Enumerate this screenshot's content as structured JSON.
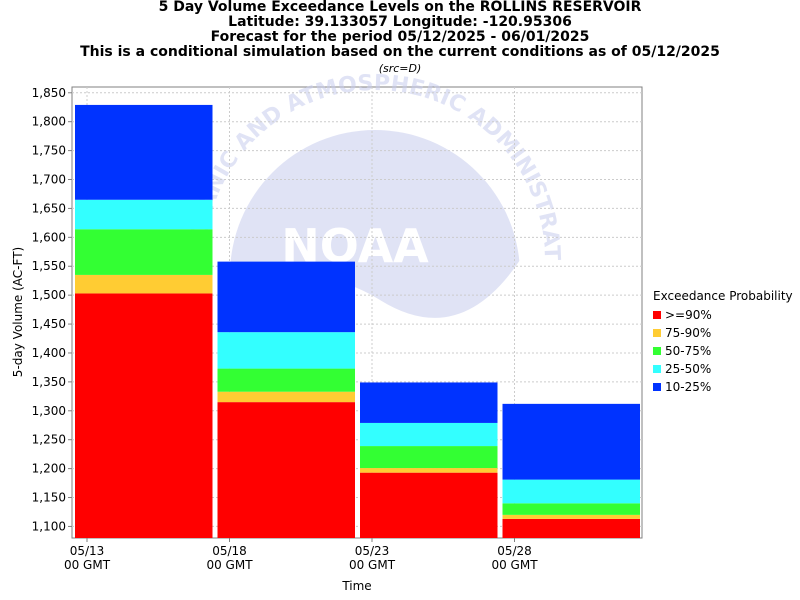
{
  "titles": {
    "line1": "5 Day Volume Exceedance Levels on the ROLLINS RESERVOIR",
    "line2": "Latitude: 39.133057 Longitude: -120.95306",
    "line3": "Forecast for the period 05/12/2025 - 06/01/2025",
    "line4": "This is a conditional simulation based on the current conditions as of 05/12/2025",
    "src": "(src=D)"
  },
  "watermark": {
    "ring_text": "OCEANIC AND ATMOSPHERIC ADMINISTRATION",
    "logo_text": "NOAA"
  },
  "chart_data": {
    "type": "bar",
    "stacked": true,
    "xlabel": "Time",
    "ylabel": "5-day Volume (AC-FT)",
    "ylim": [
      1080,
      1860
    ],
    "yticks": [
      1100,
      1150,
      1200,
      1250,
      1300,
      1350,
      1400,
      1450,
      1500,
      1550,
      1600,
      1650,
      1700,
      1750,
      1800,
      1850
    ],
    "ytick_labels": [
      "1,100",
      "1,150",
      "1,200",
      "1,250",
      "1,300",
      "1,350",
      "1,400",
      "1,450",
      "1,500",
      "1,550",
      "1,600",
      "1,650",
      "1,700",
      "1,750",
      "1,800",
      "1,850"
    ],
    "xticks": [
      {
        "line1": "05/13",
        "line2": "00 GMT"
      },
      {
        "line1": "05/18",
        "line2": "00 GMT"
      },
      {
        "line1": "05/23",
        "line2": "00 GMT"
      },
      {
        "line1": "05/28",
        "line2": "00 GMT"
      }
    ],
    "grid": true,
    "legend": {
      "title": "Exceedance Probability",
      "placement": "right",
      "items": [
        {
          "label": ">=90%",
          "color": "#ff0000"
        },
        {
          "label": "75-90%",
          "color": "#ffcc33"
        },
        {
          "label": "50-75%",
          "color": "#33ff33"
        },
        {
          "label": "25-50%",
          "color": "#33ffff"
        },
        {
          "label": "10-25%",
          "color": "#0033ff"
        }
      ]
    },
    "bars": [
      {
        "period": "05/13",
        "levels": [
          1503,
          1535,
          1614,
          1665,
          1829
        ]
      },
      {
        "period": "05/18",
        "levels": [
          1315,
          1333,
          1373,
          1436,
          1558
        ]
      },
      {
        "period": "05/23",
        "levels": [
          1193,
          1201,
          1239,
          1279,
          1349
        ]
      },
      {
        "period": "05/28",
        "levels": [
          1113,
          1120,
          1140,
          1181,
          1312
        ]
      }
    ]
  }
}
